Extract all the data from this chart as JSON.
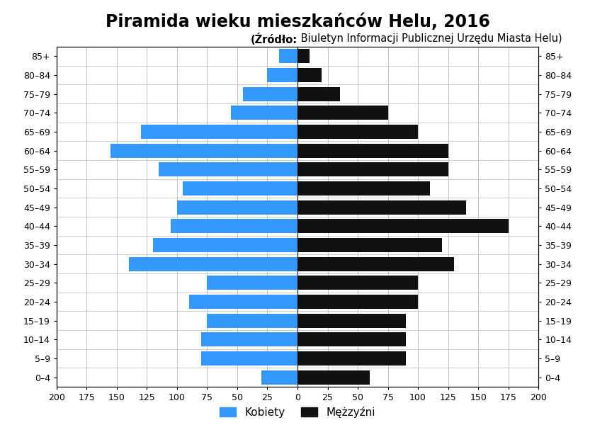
{
  "title": "Piramida wieku mieszkańców Helu, 2016",
  "subtitle_bold": "Źródło:",
  "subtitle_normal": " Biuletyn Informacji Publicznej Urzędu Miasta Helu",
  "age_groups": [
    "0–4",
    "5–9",
    "10–14",
    "15–19",
    "20–24",
    "25–29",
    "30–34",
    "35–39",
    "40–44",
    "45–49",
    "50–54",
    "55–59",
    "60–64",
    "65–69",
    "70–74",
    "75–79",
    "80–84",
    "85+"
  ],
  "females": [
    30,
    80,
    80,
    75,
    90,
    75,
    140,
    120,
    105,
    100,
    95,
    115,
    155,
    130,
    55,
    45,
    25,
    15
  ],
  "males": [
    60,
    90,
    90,
    90,
    100,
    100,
    130,
    120,
    175,
    140,
    110,
    125,
    125,
    100,
    75,
    35,
    20,
    10
  ],
  "female_color": "#3399FF",
  "male_color": "#111111",
  "xlim": 200,
  "xlabel_female": "Kobiety",
  "xlabel_male": "Mężzyźni",
  "background_color": "white",
  "grid_color": "#aaaaaa",
  "bar_height": 0.75,
  "title_fontsize": 17,
  "subtitle_fontsize": 10.5,
  "tick_fontsize": 9,
  "legend_fontsize": 11
}
